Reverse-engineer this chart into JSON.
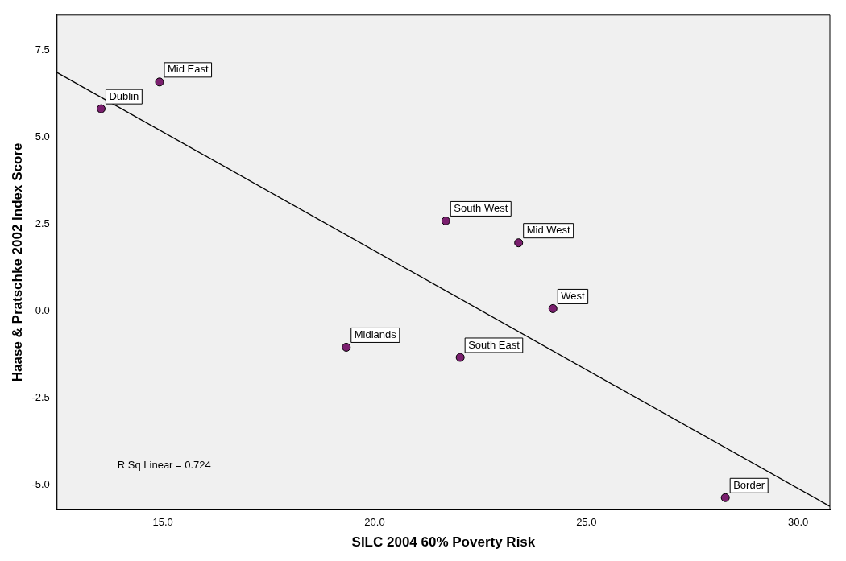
{
  "chart_data": {
    "type": "scatter",
    "xlabel": "SILC 2004 60% Poverty Risk",
    "ylabel": "Haase & Pratschke 2002 Index Score",
    "xlim": [
      12.5,
      30.75
    ],
    "ylim": [
      -5.7,
      8.5
    ],
    "xticks": [
      {
        "value": 15,
        "label": "15.0"
      },
      {
        "value": 20,
        "label": "20.0"
      },
      {
        "value": 25,
        "label": "25.0"
      },
      {
        "value": 30,
        "label": "30.0"
      }
    ],
    "yticks": [
      {
        "value": -5,
        "label": "-5.0"
      },
      {
        "value": -2.5,
        "label": "-2.5"
      },
      {
        "value": 0,
        "label": "0.0"
      },
      {
        "value": 2.5,
        "label": "2.5"
      },
      {
        "value": 5,
        "label": "5.0"
      },
      {
        "value": 7.5,
        "label": "7.5"
      }
    ],
    "grid": false,
    "legend": false,
    "marker": "circle",
    "series": [
      {
        "color": "#7a1f6e",
        "x": [
          13.54,
          14.92,
          21.68,
          23.4,
          24.21,
          19.33,
          22.02,
          28.28
        ],
        "values": [
          5.81,
          6.58,
          2.59,
          1.96,
          0.07,
          -1.04,
          -1.33,
          -5.36
        ]
      },
      {
        "type": "line",
        "marker": "none",
        "color": "#000000",
        "x": [
          12.5,
          30.75
        ],
        "values": [
          6.85,
          -5.61
        ]
      }
    ],
    "annotations": [
      {
        "text": "Dublin",
        "x": 13.54,
        "y": 5.81
      },
      {
        "text": "Mid East",
        "x": 14.92,
        "y": 6.58
      },
      {
        "text": "South West",
        "x": 21.68,
        "y": 2.59
      },
      {
        "text": "Mid West",
        "x": 23.4,
        "y": 1.96
      },
      {
        "text": "West",
        "x": 24.21,
        "y": 0.07
      },
      {
        "text": "Midlands",
        "x": 19.33,
        "y": -1.04
      },
      {
        "text": "South East",
        "x": 22.02,
        "y": -1.33
      },
      {
        "text": "Border",
        "x": 28.28,
        "y": -5.36
      },
      "R Sq Linear = 0.724"
    ]
  }
}
